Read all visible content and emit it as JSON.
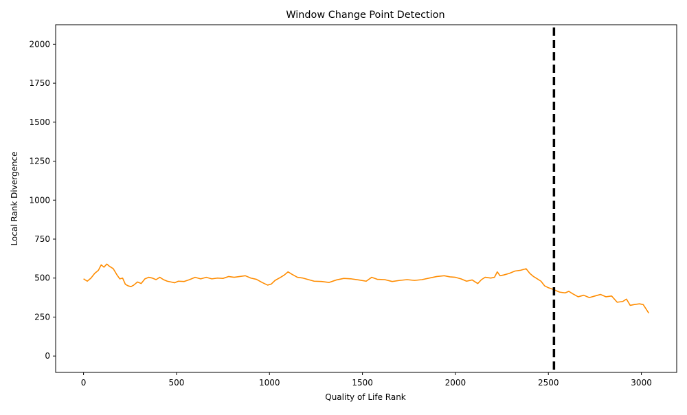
{
  "chart_data": {
    "type": "line",
    "title": "Window Change Point Detection",
    "xlabel": "Quality of Life Rank",
    "ylabel": "Local Rank Divergence",
    "xlim": [
      -150,
      3190
    ],
    "ylim": [
      -105,
      2125
    ],
    "xticks": [
      0,
      500,
      1000,
      1500,
      2000,
      2500,
      3000
    ],
    "yticks": [
      0,
      250,
      500,
      750,
      1000,
      1250,
      1500,
      1750,
      2000
    ],
    "grid": false,
    "series": [
      {
        "color": "#ff8c00",
        "points": [
          [
            0,
            495
          ],
          [
            20,
            480
          ],
          [
            40,
            500
          ],
          [
            60,
            530
          ],
          [
            80,
            550
          ],
          [
            95,
            585
          ],
          [
            110,
            570
          ],
          [
            125,
            590
          ],
          [
            140,
            575
          ],
          [
            160,
            560
          ],
          [
            180,
            520
          ],
          [
            195,
            495
          ],
          [
            210,
            500
          ],
          [
            225,
            460
          ],
          [
            240,
            450
          ],
          [
            255,
            445
          ],
          [
            270,
            455
          ],
          [
            290,
            475
          ],
          [
            310,
            465
          ],
          [
            330,
            495
          ],
          [
            350,
            505
          ],
          [
            370,
            500
          ],
          [
            390,
            490
          ],
          [
            410,
            505
          ],
          [
            430,
            490
          ],
          [
            450,
            480
          ],
          [
            470,
            475
          ],
          [
            490,
            470
          ],
          [
            510,
            480
          ],
          [
            540,
            478
          ],
          [
            570,
            490
          ],
          [
            600,
            505
          ],
          [
            630,
            495
          ],
          [
            660,
            505
          ],
          [
            690,
            495
          ],
          [
            720,
            500
          ],
          [
            750,
            498
          ],
          [
            780,
            510
          ],
          [
            810,
            505
          ],
          [
            840,
            510
          ],
          [
            870,
            515
          ],
          [
            900,
            500
          ],
          [
            930,
            492
          ],
          [
            960,
            472
          ],
          [
            990,
            455
          ],
          [
            1010,
            462
          ],
          [
            1030,
            485
          ],
          [
            1060,
            505
          ],
          [
            1080,
            520
          ],
          [
            1100,
            540
          ],
          [
            1120,
            525
          ],
          [
            1150,
            505
          ],
          [
            1180,
            500
          ],
          [
            1210,
            490
          ],
          [
            1240,
            480
          ],
          [
            1280,
            478
          ],
          [
            1320,
            472
          ],
          [
            1360,
            488
          ],
          [
            1400,
            498
          ],
          [
            1440,
            495
          ],
          [
            1480,
            488
          ],
          [
            1520,
            480
          ],
          [
            1550,
            505
          ],
          [
            1580,
            492
          ],
          [
            1620,
            490
          ],
          [
            1660,
            478
          ],
          [
            1700,
            485
          ],
          [
            1740,
            490
          ],
          [
            1780,
            485
          ],
          [
            1820,
            490
          ],
          [
            1860,
            500
          ],
          [
            1900,
            510
          ],
          [
            1940,
            515
          ],
          [
            1970,
            508
          ],
          [
            2000,
            505
          ],
          [
            2030,
            495
          ],
          [
            2060,
            480
          ],
          [
            2090,
            488
          ],
          [
            2120,
            465
          ],
          [
            2140,
            490
          ],
          [
            2160,
            505
          ],
          [
            2190,
            500
          ],
          [
            2210,
            505
          ],
          [
            2225,
            540
          ],
          [
            2240,
            515
          ],
          [
            2260,
            520
          ],
          [
            2290,
            530
          ],
          [
            2320,
            545
          ],
          [
            2350,
            550
          ],
          [
            2380,
            560
          ],
          [
            2400,
            530
          ],
          [
            2420,
            510
          ],
          [
            2440,
            495
          ],
          [
            2460,
            480
          ],
          [
            2480,
            450
          ],
          [
            2500,
            438
          ],
          [
            2520,
            430
          ],
          [
            2540,
            420
          ],
          [
            2560,
            410
          ],
          [
            2590,
            405
          ],
          [
            2610,
            415
          ],
          [
            2630,
            400
          ],
          [
            2660,
            380
          ],
          [
            2690,
            390
          ],
          [
            2720,
            375
          ],
          [
            2750,
            385
          ],
          [
            2780,
            395
          ],
          [
            2810,
            380
          ],
          [
            2840,
            385
          ],
          [
            2870,
            345
          ],
          [
            2900,
            350
          ],
          [
            2920,
            365
          ],
          [
            2940,
            325
          ],
          [
            2960,
            330
          ],
          [
            2990,
            335
          ],
          [
            3010,
            330
          ],
          [
            3040,
            275
          ]
        ]
      }
    ],
    "vline": {
      "x": 2530,
      "style": "dashed",
      "color": "#000000"
    }
  }
}
